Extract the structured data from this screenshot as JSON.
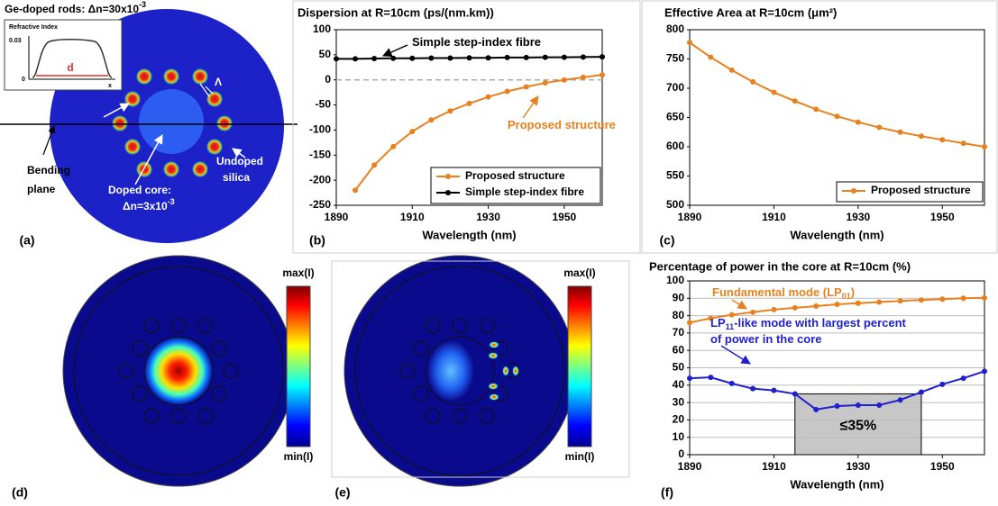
{
  "panel_labels": [
    "(a)",
    "(b)",
    "(c)",
    "(d)",
    "(e)",
    "(f)"
  ],
  "diagram": {
    "title": [
      "Ge-doped rods: ",
      "Δn=30x10",
      "-3"
    ],
    "inset": {
      "title": "Refractive Index",
      "y_top": "0.03",
      "y_zero": "0",
      "width": "d",
      "x_axis": "x"
    },
    "pitch": "Λ",
    "bending_plane": [
      "Bending",
      "plane"
    ],
    "core": [
      "Doped core:",
      "Δn=3x10",
      "-3"
    ],
    "cladding": [
      "Undoped",
      "silica"
    ]
  },
  "modes": [
    {
      "max": "max(I)",
      "min": "min(I)"
    },
    {
      "max": "max(I)",
      "min": "min(I)"
    }
  ],
  "chart_data": [
    {
      "type": "line",
      "title": "Dispersion at R=10cm (ps/(nm.km))",
      "x_label": "Wavelength (nm)",
      "x": [
        1890,
        1895,
        1900,
        1905,
        1910,
        1915,
        1920,
        1925,
        1930,
        1935,
        1940,
        1945,
        1950,
        1955,
        1960
      ],
      "xlim": [
        1890,
        1960
      ],
      "xticks": [
        1890,
        1910,
        1930,
        1950
      ],
      "ylim": [
        -250,
        100
      ],
      "yticks": [
        -250,
        -200,
        -150,
        -100,
        -50,
        0,
        50,
        100
      ],
      "legend": "lower right",
      "zero_line": true,
      "grid": false,
      "series": [
        {
          "name": "Proposed structure",
          "color": "#e8811d",
          "values": [
            null,
            -220,
            -170,
            -133,
            -103,
            -80,
            -62,
            -47,
            -34,
            -23,
            -14,
            -6,
            0,
            5,
            10
          ]
        },
        {
          "name": "Simple step-index fibre",
          "color": "#000000",
          "values": [
            42,
            42,
            42.5,
            43,
            43,
            43.5,
            43.5,
            44,
            44,
            44.5,
            44.5,
            45,
            45,
            45.5,
            46
          ]
        }
      ],
      "annotations": [
        {
          "parts": [
            {
              "text": "Simple step-index fibre"
            }
          ],
          "color": "#000000"
        },
        {
          "parts": [
            {
              "text": "Proposed structure"
            }
          ],
          "color": "#e8811d"
        }
      ]
    },
    {
      "type": "line",
      "title": "Effective Area at R=10cm (μm²)",
      "x_label": "Wavelength (nm)",
      "x": [
        1890,
        1895,
        1900,
        1905,
        1910,
        1915,
        1920,
        1925,
        1930,
        1935,
        1940,
        1945,
        1950,
        1955,
        1960
      ],
      "xlim": [
        1890,
        1960
      ],
      "xticks": [
        1890,
        1910,
        1930,
        1950
      ],
      "ylim": [
        500,
        800
      ],
      "yticks": [
        500,
        550,
        600,
        650,
        700,
        750,
        800
      ],
      "legend": "lower right",
      "grid": false,
      "series": [
        {
          "name": "Proposed structure",
          "color": "#e8811d",
          "values": [
            778,
            753,
            731,
            711,
            693,
            678,
            664,
            652,
            642,
            633,
            625,
            618,
            612,
            606,
            600
          ]
        }
      ]
    },
    {
      "type": "line",
      "title": "Percentage of power in the core at R=10cm (%)",
      "x_label": "Wavelength (nm)",
      "x": [
        1890,
        1895,
        1900,
        1905,
        1910,
        1915,
        1920,
        1925,
        1930,
        1935,
        1940,
        1945,
        1950,
        1955,
        1960
      ],
      "xlim": [
        1890,
        1960
      ],
      "xticks": [
        1890,
        1910,
        1930,
        1950
      ],
      "ylim": [
        0,
        100
      ],
      "yticks": [
        0,
        10,
        20,
        30,
        40,
        50,
        60,
        70,
        80,
        90,
        100
      ],
      "grid": true,
      "series": [
        {
          "color": "#e8811d",
          "values": [
            76,
            78.5,
            80.5,
            82,
            83.5,
            84.5,
            85.5,
            86.5,
            87.2,
            87.8,
            88.5,
            89,
            89.5,
            90,
            90.3
          ]
        },
        {
          "color": "#1f1fd0",
          "values": [
            44,
            44.5,
            41,
            38,
            37,
            35,
            26,
            28,
            28.5,
            28.5,
            31.5,
            36,
            40.5,
            44,
            48
          ]
        }
      ],
      "shaded_region": {
        "xlim": [
          1915,
          1945
        ],
        "ylim": [
          0,
          35
        ],
        "label": "≤35%"
      },
      "annotations": [
        {
          "parts": [
            {
              "text": "Fundamental mode (LP"
            },
            {
              "text": "01",
              "sub": true
            },
            {
              "text": ")"
            }
          ],
          "color": "#e8811d"
        },
        {
          "parts": [
            {
              "text": "LP"
            },
            {
              "text": "11",
              "sub": true
            },
            {
              "text": "-like mode with largest percent"
            }
          ],
          "color": "#1f1fd0"
        },
        {
          "parts": [
            {
              "text": "of power in the core"
            }
          ],
          "color": "#1f1fd0"
        }
      ]
    }
  ]
}
